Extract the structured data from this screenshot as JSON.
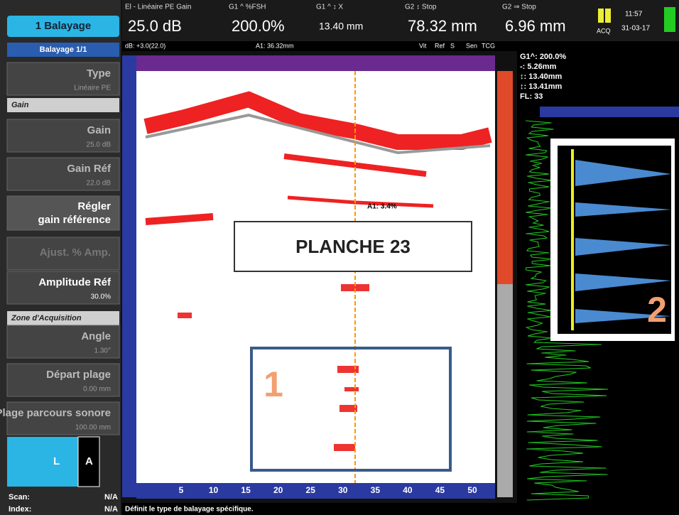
{
  "sidebar": {
    "tab": "1 Balayage",
    "scan_nav": "Balayage 1/1",
    "type": {
      "label": "Type",
      "value": "Linéaire PE"
    },
    "gain_section": "Gain",
    "gain": {
      "label": "Gain",
      "value": "25.0 dB"
    },
    "gain_ref": {
      "label": "Gain Réf",
      "value": "22.0 dB"
    },
    "set_ref": [
      "Régler",
      "gain référence"
    ],
    "adjust": "Ajust. % Amp.",
    "amp_ref": {
      "label": "Amplitude Réf",
      "value": "30.0%"
    },
    "zone_section": "Zone d'Acquisition",
    "angle": {
      "label": "Angle",
      "value": "1.30°"
    },
    "start": {
      "label": "Départ plage",
      "value": "0.00 mm"
    },
    "range": {
      "label": "Plage parcours sonore",
      "value": "100.00 mm"
    },
    "mode": [
      "L",
      "A"
    ],
    "scan": {
      "label": "Scan:",
      "value": "N/A"
    },
    "index": {
      "label": "Index:",
      "value": "N/A"
    }
  },
  "header": {
    "readouts": [
      {
        "label": "El - Linéaire PE Gain",
        "value": "25.0 dB"
      },
      {
        "label": "G1 ^ %FSH",
        "value": "200.0%"
      },
      {
        "label": "G1 ^ ↕ X",
        "value": "13.40 mm"
      },
      {
        "label": "G2 ↕ Stop",
        "value": "78.32 mm"
      },
      {
        "label": "G2 ⇒ Stop",
        "value": "6.96 mm"
      }
    ],
    "acq": "ACQ",
    "time": "11:57",
    "date": "31-03-17",
    "sub": [
      "dB: +3.0(22.0)",
      "A1: 36.32mm"
    ],
    "flags": [
      "Vit",
      "Ref",
      "S",
      "Sen",
      "TCG"
    ]
  },
  "bscan": {
    "x_ticks": [
      "5",
      "10",
      "15",
      "20",
      "25",
      "30",
      "35",
      "40",
      "45",
      "50"
    ],
    "cursor_label": "A1: 3.4%"
  },
  "info_panel": [
    "G1^: 200.0%",
    "-: 5.26mm",
    "↕: 13.40mm",
    "↕: 13.41mm",
    "FL: 33"
  ],
  "overlays": {
    "title": "PLANCHE 23",
    "zone1": "1",
    "zone2": "2"
  },
  "status": "Définit le type de balayage spécifique."
}
